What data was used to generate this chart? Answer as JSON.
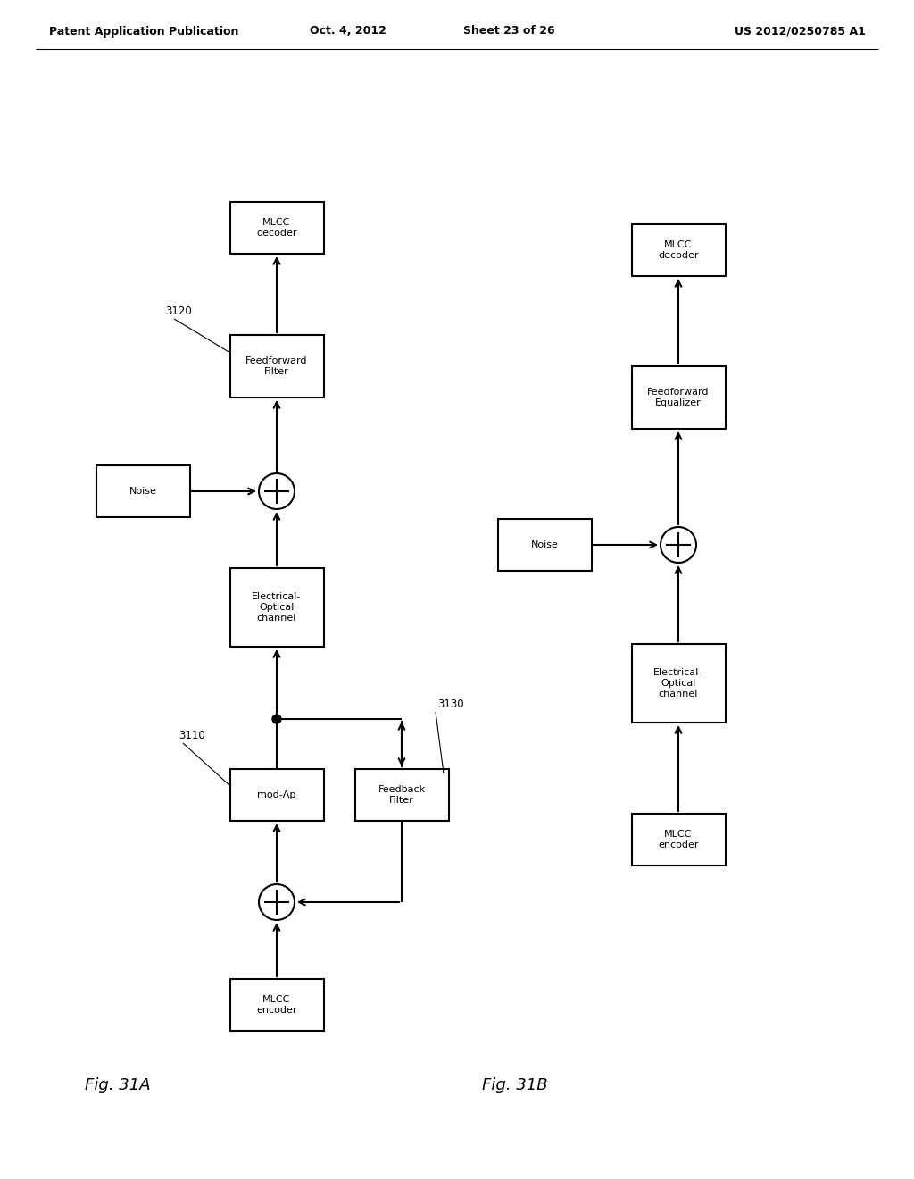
{
  "background_color": "#ffffff",
  "header_left": "Patent Application Publication",
  "header_mid": "Oct. 4, 2012",
  "header_mid2": "Sheet 23 of 26",
  "header_right": "US 2012/0250785 A1",
  "fig_a_label": "Fig. 31A",
  "fig_b_label": "Fig. 31B",
  "line_color": "#000000",
  "box_edge_color": "#000000",
  "box_face_color": "#ffffff",
  "text_color": "#000000",
  "font_size_header": 9.0,
  "font_size_block": 8.0,
  "font_size_fig": 13,
  "font_size_label": 8.5
}
